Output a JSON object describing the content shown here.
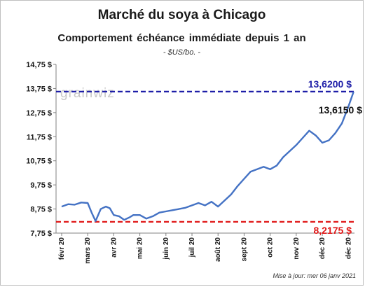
{
  "chart_data": {
    "type": "line",
    "title": "Marché du soya à Chicago",
    "subtitle": "Comportement  échéance immédiate depuis 1 an",
    "unit": "- $US/bo. -",
    "footer": "Mise à jour: mer 06 janv 2021",
    "watermark": "grainwiz",
    "ylim": [
      7.75,
      14.75
    ],
    "y_ticks": [
      "7,75 $",
      "8,75 $",
      "9,75 $",
      "10,75 $",
      "11,75 $",
      "12,75 $",
      "13,75 $",
      "14,75 $"
    ],
    "y_tick_values": [
      7.75,
      8.75,
      9.75,
      10.75,
      11.75,
      12.75,
      13.75,
      14.75
    ],
    "x_ticks": [
      "févr 20",
      "mars 20",
      "avr 20",
      "mai 20",
      "juin 20",
      "juil 20",
      "août 20",
      "sept 20",
      "oct 20",
      "nov 20",
      "déc 20",
      "déc 20"
    ],
    "grid": false,
    "series": [
      {
        "color": "#4472c4",
        "x": [
          0,
          0.25,
          0.5,
          0.75,
          1.0,
          1.15,
          1.3,
          1.5,
          1.7,
          1.85,
          2.0,
          2.2,
          2.4,
          2.6,
          2.75,
          3.0,
          3.25,
          3.5,
          3.75,
          4.0,
          4.25,
          4.5,
          4.75,
          5.0,
          5.25,
          5.5,
          5.75,
          6.0,
          6.25,
          6.5,
          6.75,
          7.0,
          7.25,
          7.5,
          7.75,
          8.0,
          8.25,
          8.5,
          8.75,
          9.0,
          9.25,
          9.5,
          9.75,
          10.0,
          10.25,
          10.5,
          10.75,
          11.0,
          11.2
        ],
        "values": [
          8.85,
          8.95,
          8.93,
          9.02,
          9.0,
          8.6,
          8.25,
          8.75,
          8.85,
          8.78,
          8.5,
          8.45,
          8.3,
          8.4,
          8.5,
          8.5,
          8.35,
          8.45,
          8.6,
          8.65,
          8.7,
          8.75,
          8.8,
          8.9,
          9.0,
          8.9,
          9.05,
          8.85,
          9.1,
          9.35,
          9.7,
          10.0,
          10.3,
          10.4,
          10.5,
          10.4,
          10.55,
          10.9,
          11.15,
          11.4,
          11.7,
          12.0,
          11.8,
          11.5,
          11.6,
          11.9,
          12.3,
          13.0,
          13.615
        ]
      }
    ],
    "reference_lines": [
      {
        "value": 13.62,
        "label": "13,6200 $",
        "color": "#1f1fa8"
      },
      {
        "value": 8.2175,
        "label": "8,2175 $",
        "color": "#e01818"
      }
    ],
    "last_value_label": "13,6150 $"
  }
}
